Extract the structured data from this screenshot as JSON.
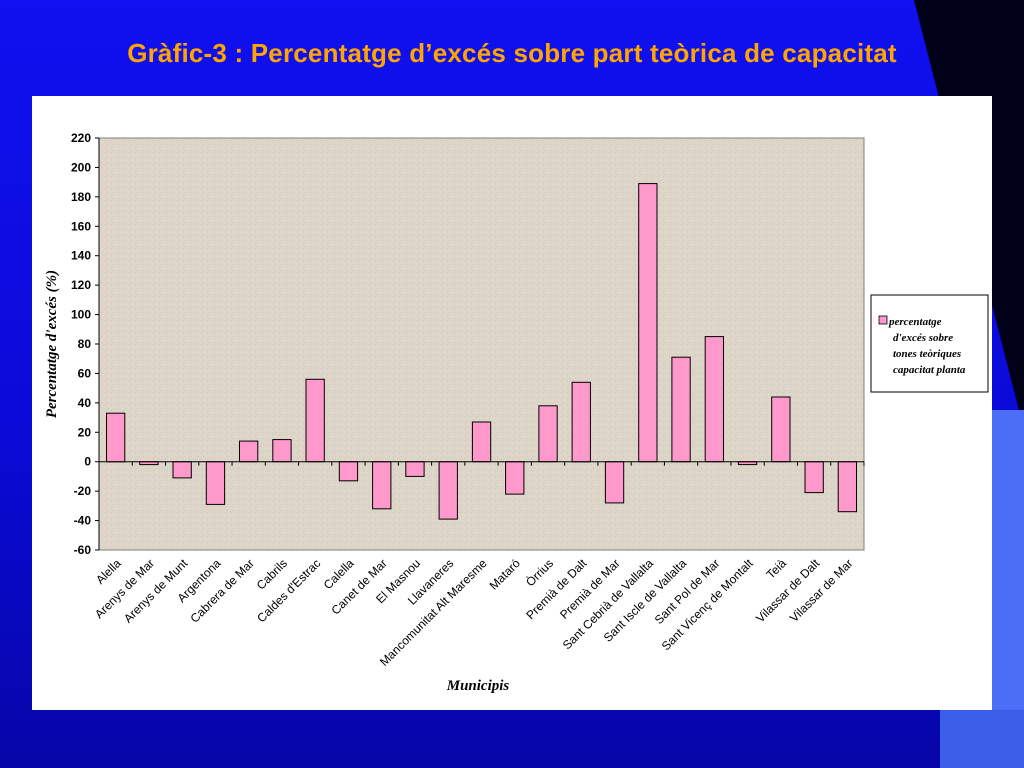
{
  "slide": {
    "title": "Gràfic-3 : Percentatge d’excés sobre part teòrica de capacitat",
    "colors": {
      "background": "#1010f0",
      "title": "#ffa500",
      "plot_area": "#ddd5c8",
      "bar": "#ff99cc"
    }
  },
  "chart_data": {
    "type": "bar",
    "title": "",
    "xlabel": "Municipis",
    "ylabel": "Percentatge d'excés (%)",
    "ylim": [
      -60,
      220
    ],
    "yticks": [
      -60,
      -40,
      -20,
      0,
      20,
      40,
      60,
      80,
      100,
      120,
      140,
      160,
      180,
      200,
      220
    ],
    "grid": false,
    "legend_position": "right",
    "categories": [
      "Alella",
      "Arenys de Mar",
      "Arenys de Munt",
      "Argentona",
      "Cabrera de Mar",
      "Cabrils",
      "Caldes d'Estrac",
      "Calella",
      "Canet de Mar",
      "El Masnou",
      "Llavaneres",
      "Mancomunitat Alt Maresme",
      "Mataró",
      "Òrrius",
      "Premià de Dalt",
      "Premià de Mar",
      "Sant Cebrià de Vallalta",
      "Sant Iscle de Vallalta",
      "Sant Pol de Mar",
      "Sant Vicenç de Montalt",
      "Teià",
      "Vilassar de Dalt",
      "Vilassar de Mar"
    ],
    "series": [
      {
        "name": "percentatge d'excés sobre tones teòriques capacitat planta",
        "legend_lines": [
          "percentatge",
          "d'excés sobre",
          "tones teòriques",
          "capacitat planta"
        ],
        "values": [
          33,
          -2,
          -11,
          -29,
          14,
          15,
          56,
          -13,
          -32,
          -10,
          -39,
          27,
          -22,
          38,
          54,
          -28,
          189,
          71,
          85,
          -2,
          44,
          -21,
          -34
        ]
      }
    ]
  }
}
